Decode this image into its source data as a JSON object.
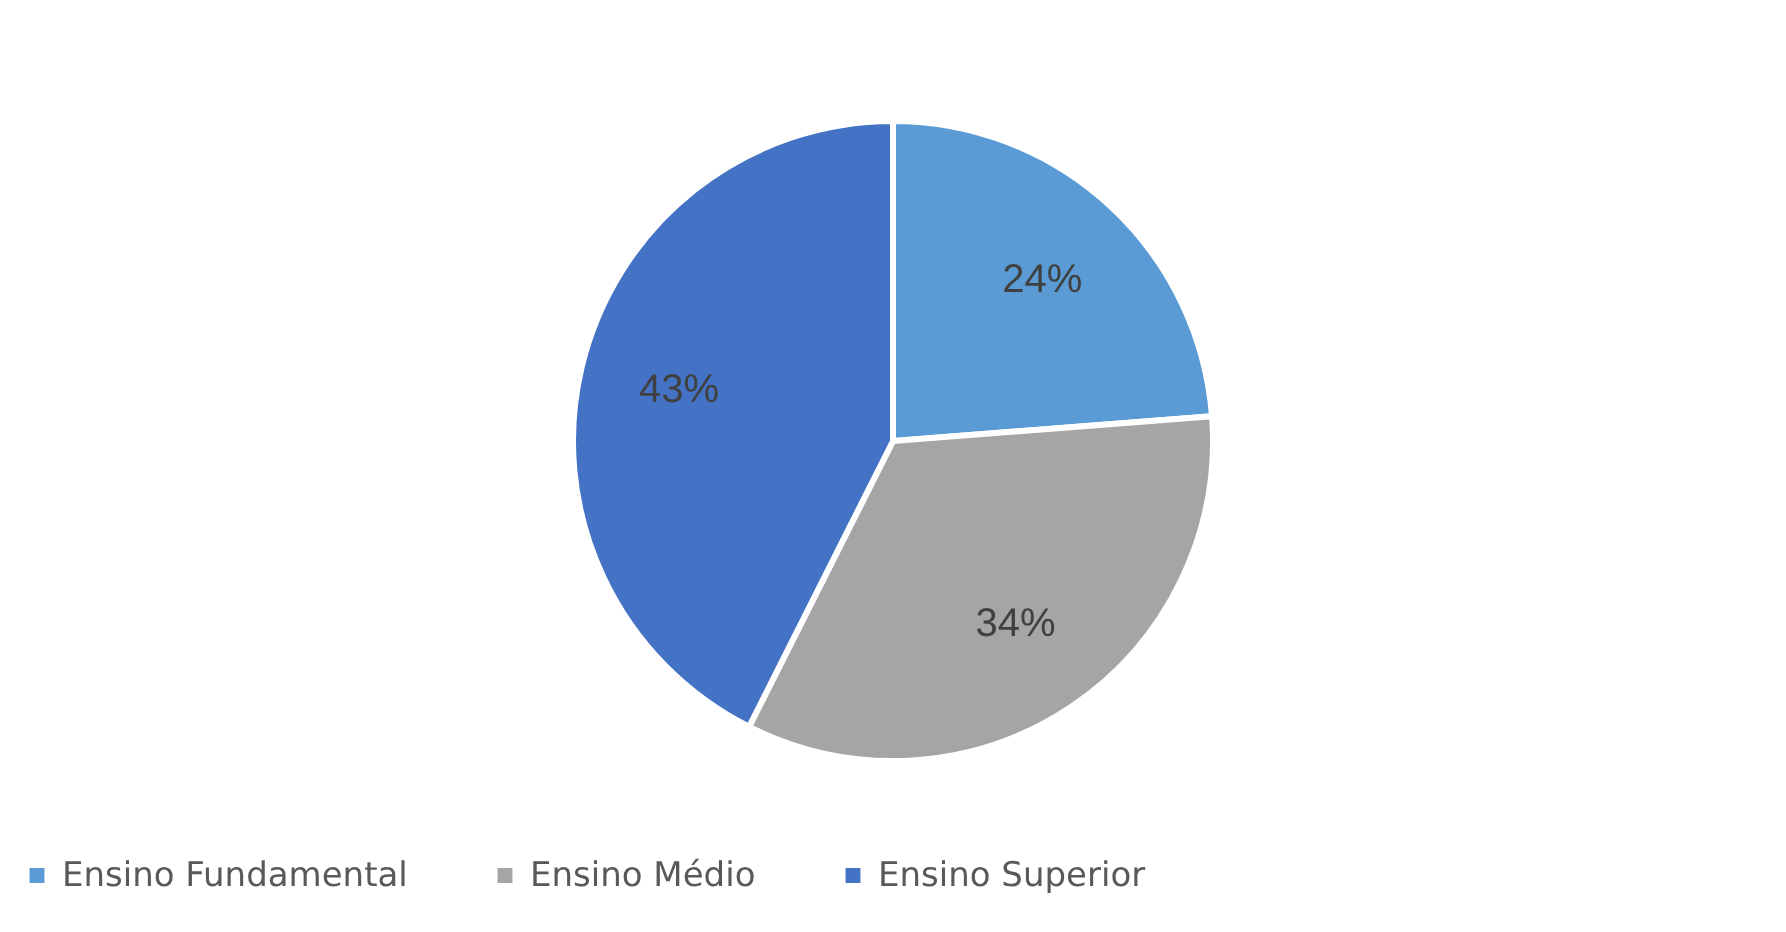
{
  "chart_data": {
    "type": "pie",
    "categories": [
      "Ensino Fundamental",
      "Ensino Médio",
      "Ensino Superior"
    ],
    "values": [
      24,
      34,
      43
    ],
    "colors": [
      "#5b9bd5",
      "#a5a5a5",
      "#4472c4"
    ],
    "value_labels": [
      "24%",
      "34%",
      "43%"
    ],
    "legend": "bottom"
  }
}
